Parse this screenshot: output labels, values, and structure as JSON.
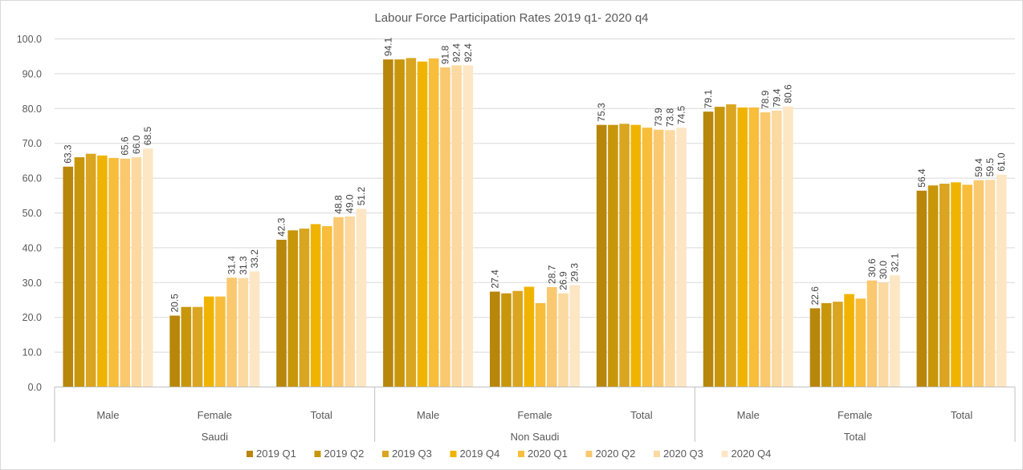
{
  "chart_data": {
    "type": "bar",
    "title": "Labour Force Participation Rates 2019 q1- 2020 q4",
    "ylim": [
      0,
      100
    ],
    "yticks": [
      "0.0",
      "10.0",
      "20.0",
      "30.0",
      "40.0",
      "50.0",
      "60.0",
      "70.0",
      "80.0",
      "90.0",
      "100.0"
    ],
    "ytick_values": [
      0,
      10,
      20,
      30,
      40,
      50,
      60,
      70,
      80,
      90,
      100
    ],
    "groups": [
      {
        "name": "Saudi",
        "categories": [
          "Male",
          "Female",
          "Total"
        ]
      },
      {
        "name": "Non Saudi",
        "categories": [
          "Male",
          "Female",
          "Total"
        ]
      },
      {
        "name": "Total",
        "categories": [
          "Male",
          "Female",
          "Total"
        ]
      }
    ],
    "series": [
      {
        "name": "2019 Q1",
        "color": "#b8860b",
        "values": [
          63.3,
          20.5,
          42.3,
          94.1,
          27.4,
          75.3,
          79.1,
          22.6,
          56.4
        ],
        "labels": [
          "63.3",
          "20.5",
          "42.3",
          "94.1",
          "27.4",
          "75.3",
          "79.1",
          "22.6",
          "56.4"
        ]
      },
      {
        "name": "2019 Q2",
        "color": "#c8960b",
        "values": [
          66.0,
          23.0,
          45.0,
          94.1,
          26.9,
          75.3,
          80.5,
          24.1,
          57.9
        ],
        "labels": [
          "",
          "",
          "",
          "",
          "",
          "",
          "",
          "",
          ""
        ]
      },
      {
        "name": "2019 Q3",
        "color": "#daa520",
        "values": [
          67.0,
          23.0,
          45.5,
          94.5,
          27.6,
          75.6,
          81.2,
          24.5,
          58.4
        ],
        "labels": [
          "",
          "",
          "",
          "",
          "",
          "",
          "",
          "",
          ""
        ]
      },
      {
        "name": "2019 Q4",
        "color": "#f0b400",
        "values": [
          66.5,
          26.0,
          46.8,
          93.5,
          28.8,
          75.3,
          80.3,
          26.7,
          58.8
        ],
        "labels": [
          "",
          "",
          "",
          "",
          "",
          "",
          "",
          "",
          ""
        ]
      },
      {
        "name": "2020 Q1",
        "color": "#f7bd3b",
        "values": [
          65.8,
          26.0,
          46.2,
          94.4,
          24.1,
          74.5,
          80.3,
          25.4,
          58.1
        ],
        "labels": [
          "",
          "",
          "",
          "",
          "",
          "",
          "",
          "",
          ""
        ]
      },
      {
        "name": "2020 Q2",
        "color": "#fac86e",
        "values": [
          65.6,
          31.4,
          48.8,
          91.8,
          28.7,
          73.9,
          78.9,
          30.6,
          59.4
        ],
        "labels": [
          "65.6",
          "31.4",
          "48.8",
          "91.8",
          "28.7",
          "73.9",
          "78.9",
          "30.6",
          "59.4"
        ]
      },
      {
        "name": "2020 Q3",
        "color": "#fcd9a0",
        "values": [
          66.0,
          31.3,
          49.0,
          92.4,
          26.9,
          73.8,
          79.4,
          30.0,
          59.5
        ],
        "labels": [
          "66.0",
          "31.3",
          "49.0",
          "92.4",
          "26.9",
          "73.8",
          "79.4",
          "30.0",
          "59.5"
        ]
      },
      {
        "name": "2020 Q4",
        "color": "#fde6c4",
        "values": [
          68.5,
          33.2,
          51.2,
          92.4,
          29.3,
          74.5,
          80.6,
          32.1,
          61.0
        ],
        "labels": [
          "68.5",
          "33.2",
          "51.2",
          "92.4",
          "29.3",
          "74.5",
          "80.6",
          "32.1",
          "61.0"
        ]
      }
    ],
    "legend_position": "bottom",
    "grid": true
  }
}
